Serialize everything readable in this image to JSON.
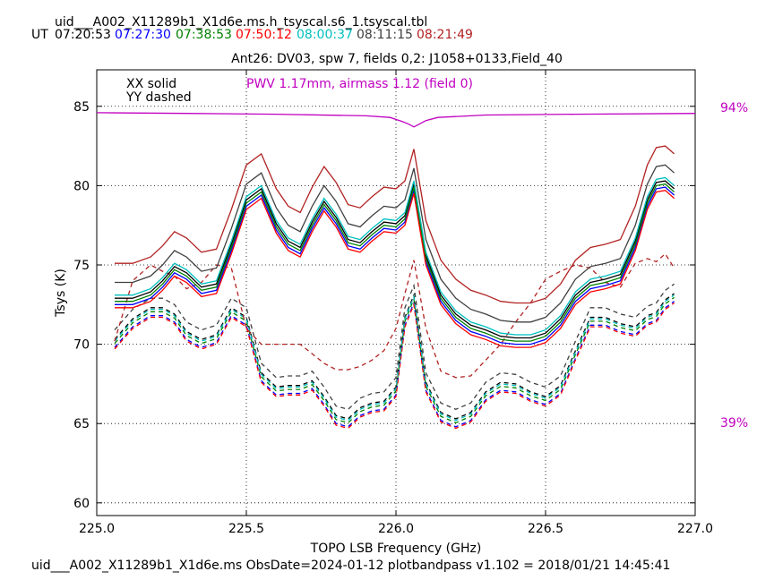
{
  "header": {
    "file_title": "uid___A002_X11289b1_X1d6e.ms.h_tsyscal.s6_1.tsyscal.tbl",
    "ut_label": "UT",
    "ut_times": [
      {
        "text": "07:20:53",
        "color": "#000000"
      },
      {
        "text": "07:27:30",
        "color": "#0000ff"
      },
      {
        "text": "07:38:53",
        "color": "#008000"
      },
      {
        "text": "07:50:12",
        "color": "#ff0000"
      },
      {
        "text": "08:00:37",
        "color": "#00bfbf"
      },
      {
        "text": "08:11:15",
        "color": "#404040"
      },
      {
        "text": "08:21:49",
        "color": "#b22222"
      }
    ],
    "subtitle": "Ant26: DV03,  spw 7,  fields 0,2: J1058+0133,Field_40"
  },
  "footer": {
    "text": "uid___A002_X11289b1_X1d6e.ms  ObsDate=2024-01-12   plotbandpass v1.102 = 2018/01/21 14:45:41"
  },
  "legend": {
    "xx": "XX solid",
    "yy": "YY dashed",
    "pwv": "PWV 1.17mm, airmass 1.12 (field 0)",
    "pwv_color": "#c000c0"
  },
  "right_axis": {
    "top_label": "94%",
    "bottom_label": "39%",
    "color": "#c000c0"
  },
  "chart_data": {
    "type": "line",
    "xlabel": "TOPO LSB Frequency (GHz)",
    "ylabel": "Tsys (K)",
    "xlim": [
      225.0,
      227.0
    ],
    "ylim": [
      59.2,
      87.3
    ],
    "xticks": [
      225.0,
      225.5,
      226.0,
      226.5,
      227.0
    ],
    "xtick_labels": [
      "225.0",
      "225.5",
      "226.0",
      "226.5",
      "227.0"
    ],
    "yticks": [
      60,
      65,
      70,
      75,
      80,
      85
    ],
    "ytick_labels": [
      "60",
      "65",
      "70",
      "75",
      "80",
      "85"
    ],
    "grid": true,
    "x": [
      225.06,
      225.12,
      225.18,
      225.22,
      225.26,
      225.3,
      225.35,
      225.4,
      225.45,
      225.5,
      225.55,
      225.6,
      225.64,
      225.68,
      225.72,
      225.76,
      225.8,
      225.84,
      225.88,
      225.92,
      225.96,
      226.0,
      226.03,
      226.06,
      226.1,
      226.15,
      226.2,
      226.25,
      226.3,
      226.35,
      226.4,
      226.45,
      226.5,
      226.55,
      226.6,
      226.65,
      226.7,
      226.75,
      226.8,
      226.84,
      226.87,
      226.9,
      226.93
    ],
    "xx_base": [
      72.3,
      72.3,
      72.7,
      73.4,
      74.3,
      73.9,
      73.0,
      73.2,
      75.7,
      78.5,
      79.2,
      77.0,
      75.9,
      75.5,
      77.1,
      78.4,
      77.4,
      76.0,
      75.8,
      76.5,
      77.1,
      77.0,
      77.5,
      79.5,
      75.0,
      72.5,
      71.3,
      70.6,
      70.3,
      69.9,
      69.8,
      69.8,
      70.1,
      71.0,
      72.5,
      73.3,
      73.5,
      73.8,
      75.9,
      78.5,
      79.6,
      79.7,
      79.2
    ],
    "yy_base": [
      69.9,
      71.2,
      71.9,
      71.9,
      71.5,
      70.4,
      69.9,
      70.2,
      71.9,
      71.3,
      67.8,
      66.9,
      67.0,
      67.0,
      67.3,
      66.3,
      65.1,
      64.9,
      65.6,
      65.9,
      66.0,
      66.9,
      71.3,
      72.7,
      67.2,
      65.3,
      64.9,
      65.3,
      66.6,
      67.2,
      67.1,
      66.6,
      66.3,
      67.0,
      69.2,
      71.3,
      71.3,
      70.9,
      70.7,
      71.4,
      71.6,
      72.4,
      72.8
    ],
    "series": [
      {
        "name": "07:20:53",
        "color": "#000000",
        "xx_offset": 0.6,
        "yy_offset": 0.4
      },
      {
        "name": "07:27:30",
        "color": "#0000ff",
        "xx_offset": 0.2,
        "yy_offset": -0.1
      },
      {
        "name": "07:38:53",
        "color": "#008000",
        "xx_offset": 0.4,
        "yy_offset": 0.15
      },
      {
        "name": "07:50:12",
        "color": "#ff0000",
        "xx_offset": 0.0,
        "yy_offset": -0.2
      },
      {
        "name": "08:00:37",
        "color": "#00bfbf",
        "xx_offset": 0.8,
        "yy_offset": 0.3
      },
      {
        "name": "08:11:15",
        "color": "#404040",
        "xx_offset": 1.6,
        "yy_offset": 1.0
      },
      {
        "name": "08:21:49",
        "color": "#b22222",
        "xx_offset": 2.8,
        "yy_offset": 0.0
      }
    ],
    "yy_last_series_values": [
      70.2,
      74.0,
      75.0,
      74.6,
      74.3,
      73.5,
      73.9,
      75.0,
      74.8,
      71.0,
      70.0,
      70.0,
      70.0,
      70.0,
      69.4,
      68.8,
      68.4,
      68.4,
      68.6,
      69.0,
      69.6,
      71.0,
      73.2,
      75.3,
      71.0,
      68.3,
      67.9,
      68.0,
      69.0,
      70.0,
      71.4,
      72.6,
      74.1,
      74.6,
      75.0,
      74.8,
      73.9,
      73.6,
      75.1,
      75.4,
      75.2,
      75.7,
      74.8
    ],
    "transmission": {
      "color": "#c000c0",
      "x": [
        225.0,
        225.3,
        225.6,
        225.9,
        225.98,
        226.02,
        226.04,
        226.06,
        226.08,
        226.1,
        226.14,
        226.3,
        226.6,
        227.0
      ],
      "y": [
        84.6,
        84.55,
        84.5,
        84.4,
        84.3,
        84.05,
        83.9,
        83.7,
        83.9,
        84.1,
        84.3,
        84.45,
        84.5,
        84.55
      ]
    }
  }
}
